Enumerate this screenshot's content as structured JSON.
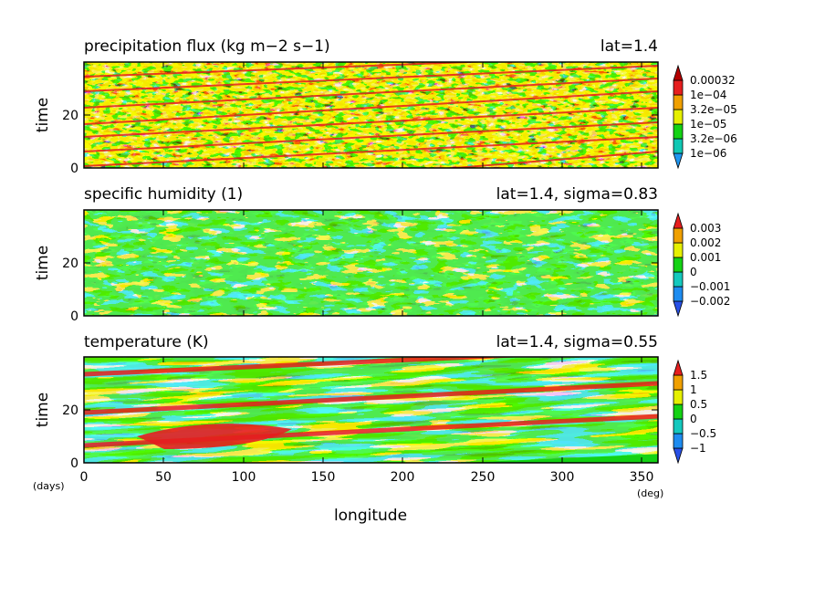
{
  "chart_data": [
    {
      "type": "heatmap",
      "title": "precipitation flux (kg m−2 s−1)",
      "subtitle": "lat=1.4",
      "ylabel": "time",
      "xlim": [
        0,
        360
      ],
      "ylim": [
        0,
        40
      ],
      "yticks": [
        "0",
        "20"
      ],
      "colorbar": {
        "labels": [
          "0.00032",
          "1e−04",
          "3.2e−05",
          "1e−05",
          "3.2e−06",
          "1e−06"
        ],
        "colors": [
          "#1e96f0",
          "#10c8b4",
          "#14d214",
          "#e6f000",
          "#f0a000",
          "#e61e1e",
          "#b40000"
        ]
      }
    },
    {
      "type": "heatmap",
      "title": "specific humidity (1)",
      "subtitle": "lat=1.4, sigma=0.83",
      "ylabel": "time",
      "xlim": [
        0,
        360
      ],
      "ylim": [
        0,
        40
      ],
      "yticks": [
        "0",
        "20"
      ],
      "colorbar": {
        "labels": [
          "0.003",
          "0.002",
          "0.001",
          "0",
          "−0.001",
          "−0.002"
        ],
        "colors": [
          "#2850e6",
          "#1e8cf0",
          "#14c8be",
          "#14d214",
          "#e6f000",
          "#f0a000",
          "#e61e1e"
        ]
      }
    },
    {
      "type": "heatmap",
      "title": "temperature (K)",
      "subtitle": "lat=1.4, sigma=0.55",
      "ylabel": "time",
      "xlabel": "longitude",
      "xlim": [
        0,
        360
      ],
      "ylim": [
        0,
        40
      ],
      "yticks": [
        "0",
        "20"
      ],
      "xticks": [
        "0",
        "50",
        "100",
        "150",
        "200",
        "250",
        "300",
        "350"
      ],
      "xunit": "(deg)",
      "yunit": "(days)",
      "colorbar": {
        "labels": [
          "1.5",
          "1",
          "0.5",
          "0",
          "−0.5",
          "−1"
        ],
        "colors": [
          "#2850e6",
          "#1e8cf0",
          "#14c8be",
          "#14d214",
          "#e6f000",
          "#f0a000",
          "#e61e1e"
        ]
      }
    }
  ]
}
